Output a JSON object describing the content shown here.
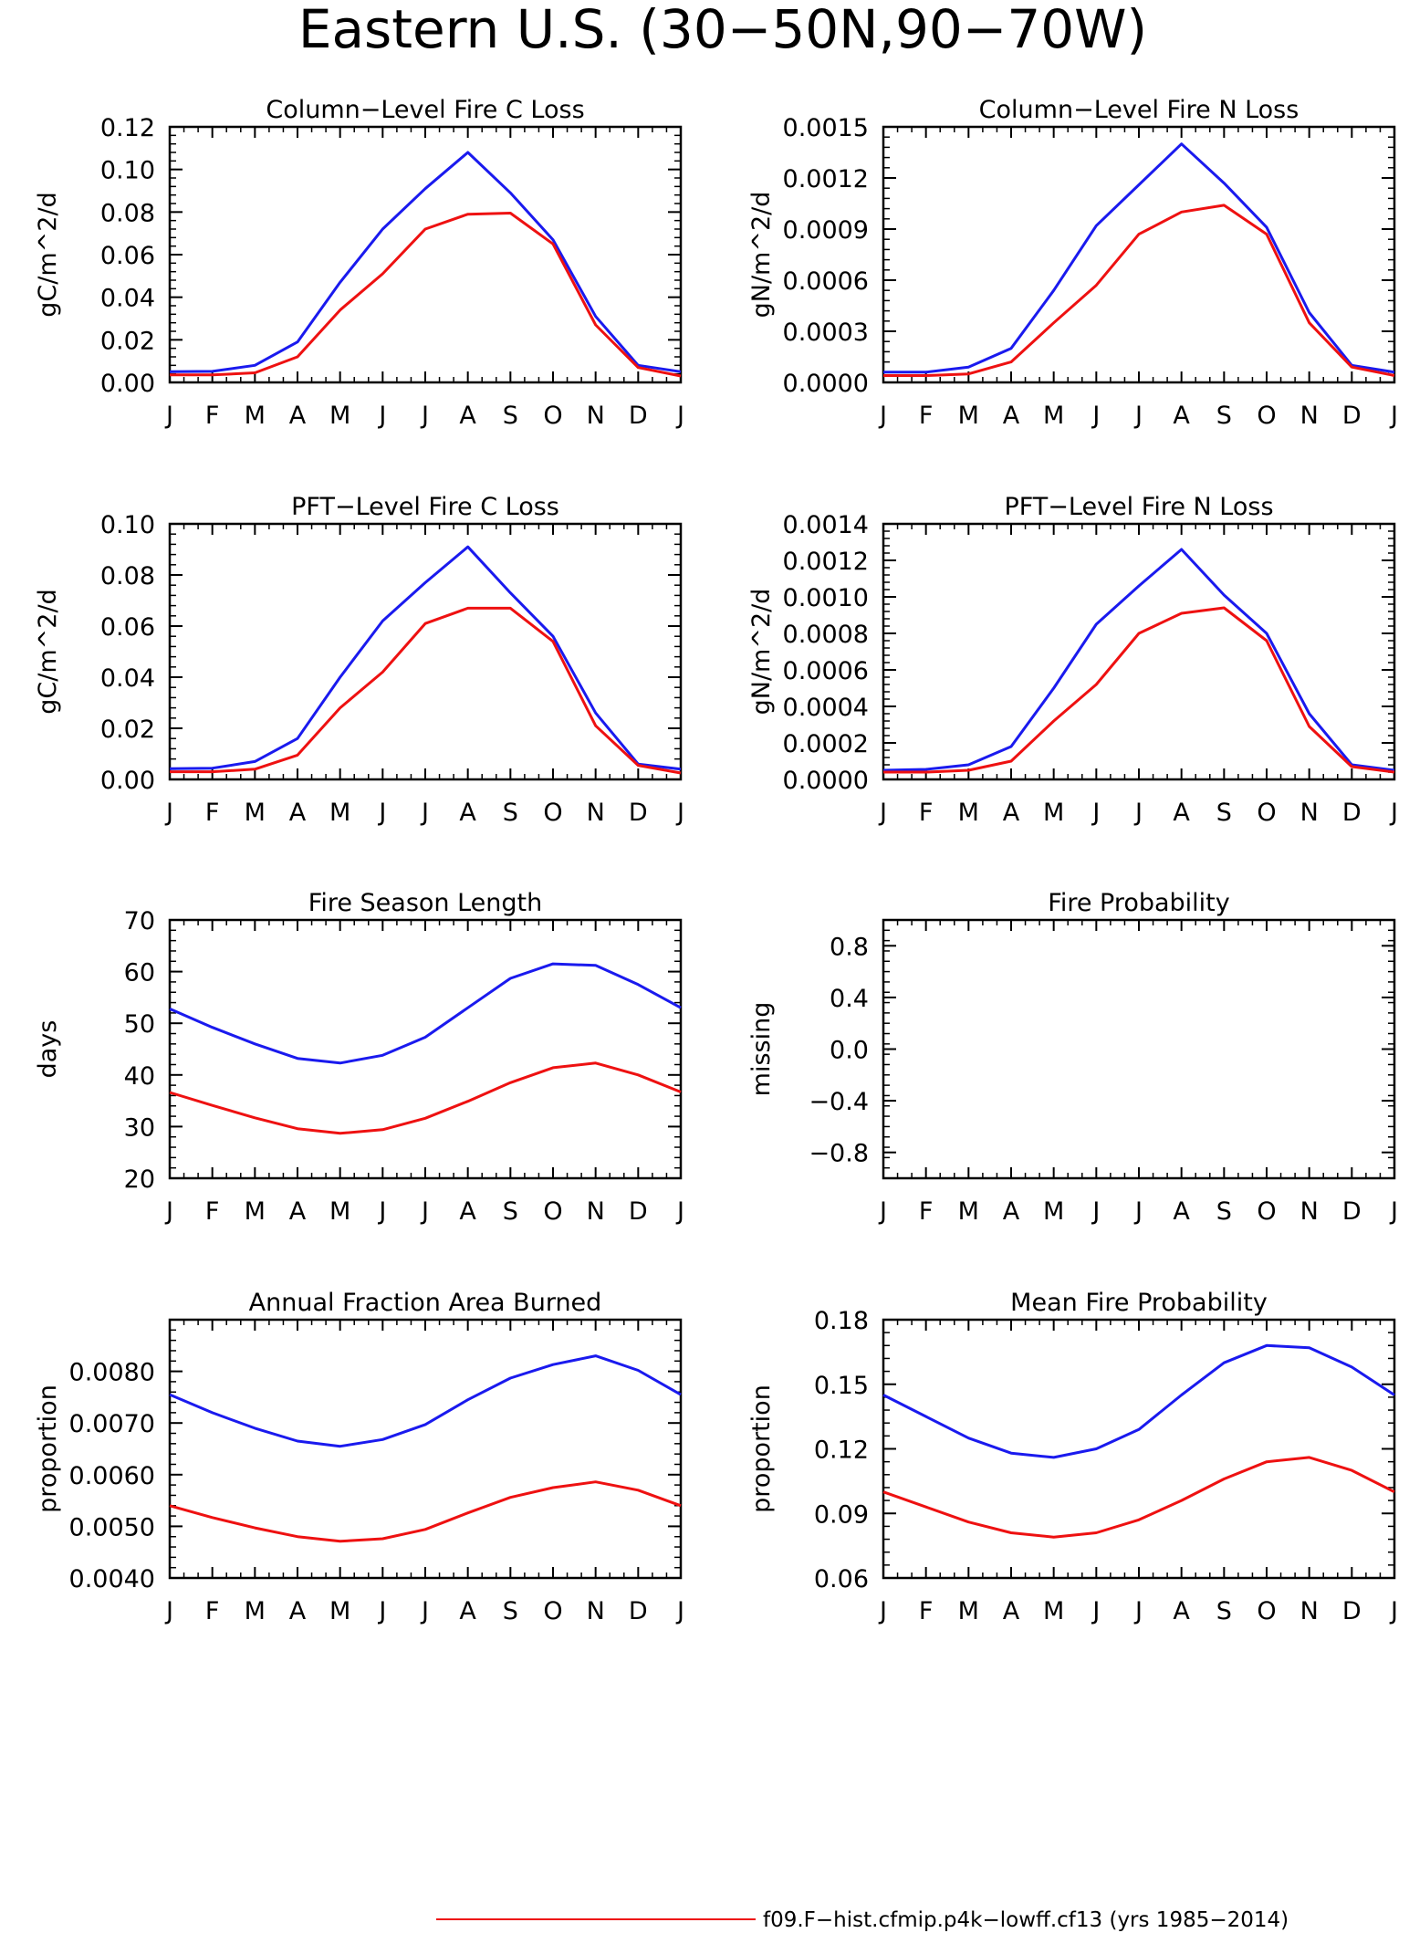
{
  "figure": {
    "title": "Eastern U.S. (30−50N,90−70W)",
    "legend": [
      {
        "label": "f09.F−hist.cfmip.p4k−lowff.cf13 (yrs 1985−2014)",
        "color": "#ee1111"
      }
    ]
  },
  "colors": {
    "series_blue": "#1a1aee",
    "series_red": "#ee1111"
  },
  "chart_data": [
    {
      "type": "line",
      "title": "Column−Level Fire C Loss",
      "ylabel": "gC/m^2/d",
      "x": [
        "J",
        "F",
        "M",
        "A",
        "M",
        "J",
        "J",
        "A",
        "S",
        "O",
        "N",
        "D",
        "J"
      ],
      "ylim": [
        0,
        0.12
      ],
      "yticks": [
        "0.00",
        "0.02",
        "0.04",
        "0.06",
        "0.08",
        "0.10",
        "0.12"
      ],
      "series": [
        {
          "color": "#1a1aee",
          "values": [
            0.005,
            0.0052,
            0.008,
            0.019,
            0.047,
            0.072,
            0.091,
            0.108,
            0.089,
            0.067,
            0.031,
            0.008,
            0.005
          ]
        },
        {
          "color": "#ee1111",
          "values": [
            0.0035,
            0.0035,
            0.0045,
            0.012,
            0.034,
            0.051,
            0.072,
            0.079,
            0.0795,
            0.065,
            0.027,
            0.007,
            0.003
          ]
        }
      ]
    },
    {
      "type": "line",
      "title": "Column−Level Fire N Loss",
      "ylabel": "gN/m^2/d",
      "x": [
        "J",
        "F",
        "M",
        "A",
        "M",
        "J",
        "J",
        "A",
        "S",
        "O",
        "N",
        "D",
        "J"
      ],
      "ylim": [
        0,
        0.0015
      ],
      "yticks": [
        "0.0000",
        "0.0003",
        "0.0006",
        "0.0009",
        "0.0012",
        "0.0015"
      ],
      "series": [
        {
          "color": "#1a1aee",
          "values": [
            6e-05,
            6e-05,
            9e-05,
            0.0002,
            0.00054,
            0.00092,
            0.00116,
            0.0014,
            0.00117,
            0.00091,
            0.00041,
            0.0001,
            6e-05
          ]
        },
        {
          "color": "#ee1111",
          "values": [
            4e-05,
            4e-05,
            5e-05,
            0.00012,
            0.00035,
            0.00057,
            0.00087,
            0.001,
            0.00104,
            0.00087,
            0.00035,
            9e-05,
            4e-05
          ]
        }
      ]
    },
    {
      "type": "line",
      "title": "PFT−Level Fire C Loss",
      "ylabel": "gC/m^2/d",
      "x": [
        "J",
        "F",
        "M",
        "A",
        "M",
        "J",
        "J",
        "A",
        "S",
        "O",
        "N",
        "D",
        "J"
      ],
      "ylim": [
        0,
        0.1
      ],
      "yticks": [
        "0.00",
        "0.02",
        "0.04",
        "0.06",
        "0.08",
        "0.10"
      ],
      "series": [
        {
          "color": "#1a1aee",
          "values": [
            0.0042,
            0.0044,
            0.007,
            0.016,
            0.04,
            0.062,
            0.077,
            0.091,
            0.073,
            0.056,
            0.026,
            0.006,
            0.004
          ]
        },
        {
          "color": "#ee1111",
          "values": [
            0.003,
            0.003,
            0.004,
            0.0095,
            0.028,
            0.042,
            0.061,
            0.067,
            0.067,
            0.054,
            0.021,
            0.0055,
            0.0025
          ]
        }
      ]
    },
    {
      "type": "line",
      "title": "PFT−Level Fire N Loss",
      "ylabel": "gN/m^2/d",
      "x": [
        "J",
        "F",
        "M",
        "A",
        "M",
        "J",
        "J",
        "A",
        "S",
        "O",
        "N",
        "D",
        "J"
      ],
      "ylim": [
        0,
        0.0014
      ],
      "yticks": [
        "0.0000",
        "0.0002",
        "0.0004",
        "0.0006",
        "0.0008",
        "0.0010",
        "0.0012",
        "0.0014"
      ],
      "series": [
        {
          "color": "#1a1aee",
          "values": [
            5e-05,
            5.5e-05,
            8e-05,
            0.00018,
            0.0005,
            0.00085,
            0.00106,
            0.00126,
            0.00101,
            0.0008,
            0.00036,
            8e-05,
            5e-05
          ]
        },
        {
          "color": "#ee1111",
          "values": [
            4e-05,
            4e-05,
            5e-05,
            0.0001,
            0.00032,
            0.00052,
            0.0008,
            0.00091,
            0.00094,
            0.00076,
            0.00029,
            7e-05,
            4e-05
          ]
        }
      ]
    },
    {
      "type": "line",
      "title": "Fire Season Length",
      "ylabel": "days",
      "x": [
        "J",
        "F",
        "M",
        "A",
        "M",
        "J",
        "J",
        "A",
        "S",
        "O",
        "N",
        "D",
        "J"
      ],
      "ylim": [
        20,
        70
      ],
      "yticks": [
        "20",
        "30",
        "40",
        "50",
        "60",
        "70"
      ],
      "series": [
        {
          "color": "#1a1aee",
          "values": [
            52.8,
            49.2,
            46,
            43.2,
            42.3,
            43.8,
            47.3,
            53,
            58.7,
            61.5,
            61.2,
            57.5,
            53
          ]
        },
        {
          "color": "#ee1111",
          "values": [
            36.6,
            34.1,
            31.7,
            29.6,
            28.7,
            29.4,
            31.6,
            34.9,
            38.5,
            41.4,
            42.3,
            40,
            36.7
          ]
        }
      ]
    },
    {
      "type": "line",
      "title": "Fire Probability",
      "ylabel": "missing",
      "x": [
        "J",
        "F",
        "M",
        "A",
        "M",
        "J",
        "J",
        "A",
        "S",
        "O",
        "N",
        "D",
        "J"
      ],
      "ylim": [
        -1,
        1
      ],
      "yticks": [
        "−0.8",
        "−0.4",
        "0.0",
        "0.4",
        "0.8"
      ],
      "series": []
    },
    {
      "type": "line",
      "title": "Annual Fraction Area Burned",
      "ylabel": "proportion",
      "x": [
        "J",
        "F",
        "M",
        "A",
        "M",
        "J",
        "J",
        "A",
        "S",
        "O",
        "N",
        "D",
        "J"
      ],
      "ylim": [
        0.004,
        0.009
      ],
      "yticks": [
        "0.0040",
        "0.0050",
        "0.0060",
        "0.0070",
        "0.0080"
      ],
      "series": [
        {
          "color": "#1a1aee",
          "values": [
            0.00755,
            0.0072,
            0.0069,
            0.00665,
            0.00655,
            0.00668,
            0.00697,
            0.00745,
            0.00787,
            0.00813,
            0.0083,
            0.00802,
            0.00755
          ]
        },
        {
          "color": "#ee1111",
          "values": [
            0.0054,
            0.00517,
            0.00497,
            0.0048,
            0.00471,
            0.00476,
            0.00494,
            0.00526,
            0.00556,
            0.00575,
            0.00586,
            0.0057,
            0.0054
          ]
        }
      ]
    },
    {
      "type": "line",
      "title": "Mean Fire Probability",
      "ylabel": "proportion",
      "x": [
        "J",
        "F",
        "M",
        "A",
        "M",
        "J",
        "J",
        "A",
        "S",
        "O",
        "N",
        "D",
        "J"
      ],
      "ylim": [
        0.06,
        0.18
      ],
      "yticks": [
        "0.06",
        "0.09",
        "0.12",
        "0.15",
        "0.18"
      ],
      "series": [
        {
          "color": "#1a1aee",
          "values": [
            0.145,
            0.135,
            0.125,
            0.118,
            0.116,
            0.12,
            0.129,
            0.145,
            0.16,
            0.168,
            0.167,
            0.158,
            0.145
          ]
        },
        {
          "color": "#ee1111",
          "values": [
            0.1,
            0.093,
            0.086,
            0.081,
            0.079,
            0.081,
            0.087,
            0.096,
            0.106,
            0.114,
            0.116,
            0.11,
            0.1
          ]
        }
      ]
    }
  ]
}
